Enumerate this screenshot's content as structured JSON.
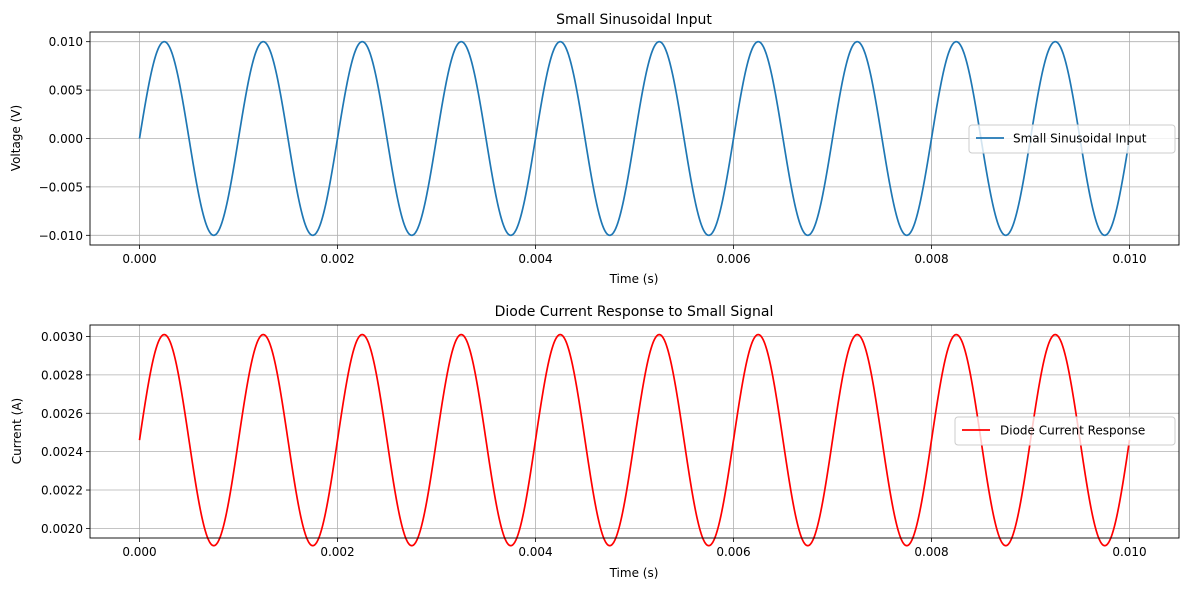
{
  "chart_data": [
    {
      "type": "line",
      "title": "Small Sinusoidal Input",
      "xlabel": "Time (s)",
      "ylabel": "Voltage (V)",
      "xlim": [
        -0.0005,
        0.0105
      ],
      "ylim": [
        -0.011,
        0.011
      ],
      "xticks": [
        0.0,
        0.002,
        0.004,
        0.006,
        0.008,
        0.01
      ],
      "xtick_labels": [
        "0.000",
        "0.002",
        "0.004",
        "0.006",
        "0.008",
        "0.010"
      ],
      "yticks": [
        -0.01,
        -0.005,
        0.0,
        0.005,
        0.01
      ],
      "ytick_labels": [
        "−0.010",
        "−0.005",
        "0.000",
        "0.005",
        "0.010"
      ],
      "grid": true,
      "legend_position": "center-right",
      "series": [
        {
          "name": "Small Sinusoidal Input",
          "color": "#1f77b4",
          "function": "sine",
          "x_start": 0.0,
          "x_end": 0.01,
          "frequency_hz": 1000,
          "amplitude": 0.01,
          "offset": 0.0,
          "peaks_at": [
            0.00025,
            0.00125,
            0.00225,
            0.00325,
            0.00425,
            0.00525,
            0.00625,
            0.00725,
            0.00825,
            0.00925
          ],
          "start_value": 0.0,
          "end_value": 0.0
        }
      ]
    },
    {
      "type": "line",
      "title": "Diode Current Response to Small Signal",
      "xlabel": "Time (s)",
      "ylabel": "Current (A)",
      "xlim": [
        -0.0005,
        0.0105
      ],
      "ylim": [
        0.00195,
        0.00306
      ],
      "xticks": [
        0.0,
        0.002,
        0.004,
        0.006,
        0.008,
        0.01
      ],
      "xtick_labels": [
        "0.000",
        "0.002",
        "0.004",
        "0.006",
        "0.008",
        "0.010"
      ],
      "yticks": [
        0.002,
        0.0022,
        0.0024,
        0.0026,
        0.0028,
        0.003
      ],
      "ytick_labels": [
        "0.0020",
        "0.0022",
        "0.0024",
        "0.0026",
        "0.0028",
        "0.0030"
      ],
      "grid": true,
      "legend_position": "center-right",
      "series": [
        {
          "name": "Diode Current Response",
          "color": "#ff0000",
          "function": "sine",
          "x_start": 0.0,
          "x_end": 0.01,
          "frequency_hz": 1000,
          "amplitude": 0.00055,
          "offset": 0.00246,
          "max_value": 0.00301,
          "min_value": 0.00201,
          "start_value": 0.00246,
          "end_value": 0.00246
        }
      ]
    }
  ]
}
